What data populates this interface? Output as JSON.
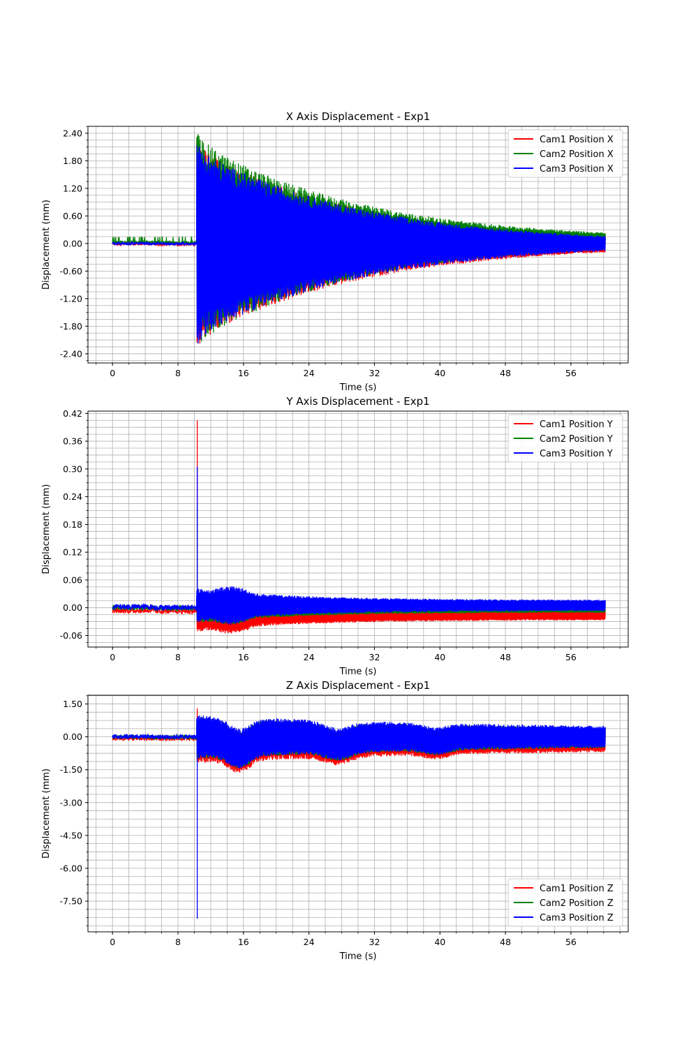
{
  "chart_data": [
    {
      "type": "line",
      "title": "X Axis Displacement - Exp1",
      "xlabel": "Time (s)",
      "ylabel": "Displacement (mm)",
      "xlim": [
        -3,
        63
      ],
      "ylim": [
        -2.6,
        2.55
      ],
      "xticks": [
        0,
        8,
        16,
        24,
        32,
        40,
        48,
        56
      ],
      "xtick_labels": [
        "0",
        "8",
        "16",
        "24",
        "32",
        "40",
        "48",
        "56"
      ],
      "yticks": [
        2.4,
        1.8,
        1.2,
        0.6,
        0.0,
        -0.6,
        -1.2,
        -1.8,
        -2.4
      ],
      "ytick_labels": [
        "2.40",
        "1.80",
        "1.20",
        "0.60",
        "0.00",
        "-0.60",
        "-1.20",
        "-1.80",
        "-2.40"
      ],
      "grid": true,
      "legend_position": "top-right",
      "signal": {
        "kind": "decay",
        "t_impact": 10.3,
        "t_end": 60.2,
        "pre_amp": 0.03,
        "peak": 2.3,
        "tau": 20,
        "floor": 0.05
      },
      "series": [
        {
          "name": "Cam1 Position X",
          "color": "#ff0000",
          "scale": 1.0,
          "offset": -0.02
        },
        {
          "name": "Cam2 Position X",
          "color": "#008000",
          "scale": 1.04,
          "offset": 0.06
        },
        {
          "name": "Cam3 Position X",
          "color": "#0000ff",
          "scale": 0.97,
          "offset": 0.0
        }
      ]
    },
    {
      "type": "line",
      "title": "Y Axis Displacement - Exp1",
      "xlabel": "Time (s)",
      "ylabel": "Displacement (mm)",
      "xlim": [
        -3,
        63
      ],
      "ylim": [
        -0.085,
        0.425
      ],
      "xticks": [
        0,
        8,
        16,
        24,
        32,
        40,
        48,
        56
      ],
      "xtick_labels": [
        "0",
        "8",
        "16",
        "24",
        "32",
        "40",
        "48",
        "56"
      ],
      "yticks": [
        0.42,
        0.36,
        0.3,
        0.24,
        0.18,
        0.12,
        0.06,
        0.0,
        -0.06
      ],
      "ytick_labels": [
        "0.42",
        "0.36",
        "0.30",
        "0.24",
        "0.18",
        "0.12",
        "0.06",
        "0.00",
        "-0.06"
      ],
      "grid": true,
      "legend_position": "top-right",
      "signal": {
        "kind": "spike",
        "t_impact": 10.3,
        "t_end": 60.2,
        "pre_amp": 0.006,
        "spike": 0.4,
        "amp": 0.025,
        "tau": 12,
        "floor": 0.012
      },
      "series": [
        {
          "name": "Cam1 Position Y",
          "color": "#ff0000",
          "scale": 1.0,
          "offset": -0.015,
          "spike": 0.405
        },
        {
          "name": "Cam2 Position Y",
          "color": "#008000",
          "scale": 0.9,
          "offset": 0.0,
          "spike": 0.22
        },
        {
          "name": "Cam3 Position Y",
          "color": "#0000ff",
          "scale": 1.0,
          "offset": 0.005,
          "spike": 0.305
        }
      ]
    },
    {
      "type": "line",
      "title": "Z Axis Displacement - Exp1",
      "xlabel": "Time (s)",
      "ylabel": "Displacement (mm)",
      "xlim": [
        -3,
        63
      ],
      "ylim": [
        -8.9,
        1.9
      ],
      "xticks": [
        0,
        8,
        16,
        24,
        32,
        40,
        48,
        56
      ],
      "xtick_labels": [
        "0",
        "8",
        "16",
        "24",
        "32",
        "40",
        "48",
        "56"
      ],
      "yticks": [
        1.5,
        0.0,
        -1.5,
        -3.0,
        -4.5,
        -6.0,
        -7.5
      ],
      "ytick_labels": [
        "1.50",
        "0.00",
        "-1.50",
        "-3.00",
        "-4.50",
        "-6.00",
        "-7.50"
      ],
      "grid": true,
      "legend_position": "bottom-right",
      "signal": {
        "kind": "dip",
        "t_impact": 10.3,
        "t_end": 60.2,
        "pre_amp": 0.1,
        "amp": 0.7,
        "floor": 0.3
      },
      "series": [
        {
          "name": "Cam1 Position Z",
          "color": "#ff0000",
          "scale": 1.0,
          "offset": -0.15,
          "spike": 1.3
        },
        {
          "name": "Cam2 Position Z",
          "color": "#008000",
          "scale": 0.95,
          "offset": 0.0,
          "spike": 0.8
        },
        {
          "name": "Cam3 Position Z",
          "color": "#0000ff",
          "scale": 1.0,
          "offset": 0.05,
          "spike": -8.3
        }
      ]
    }
  ]
}
